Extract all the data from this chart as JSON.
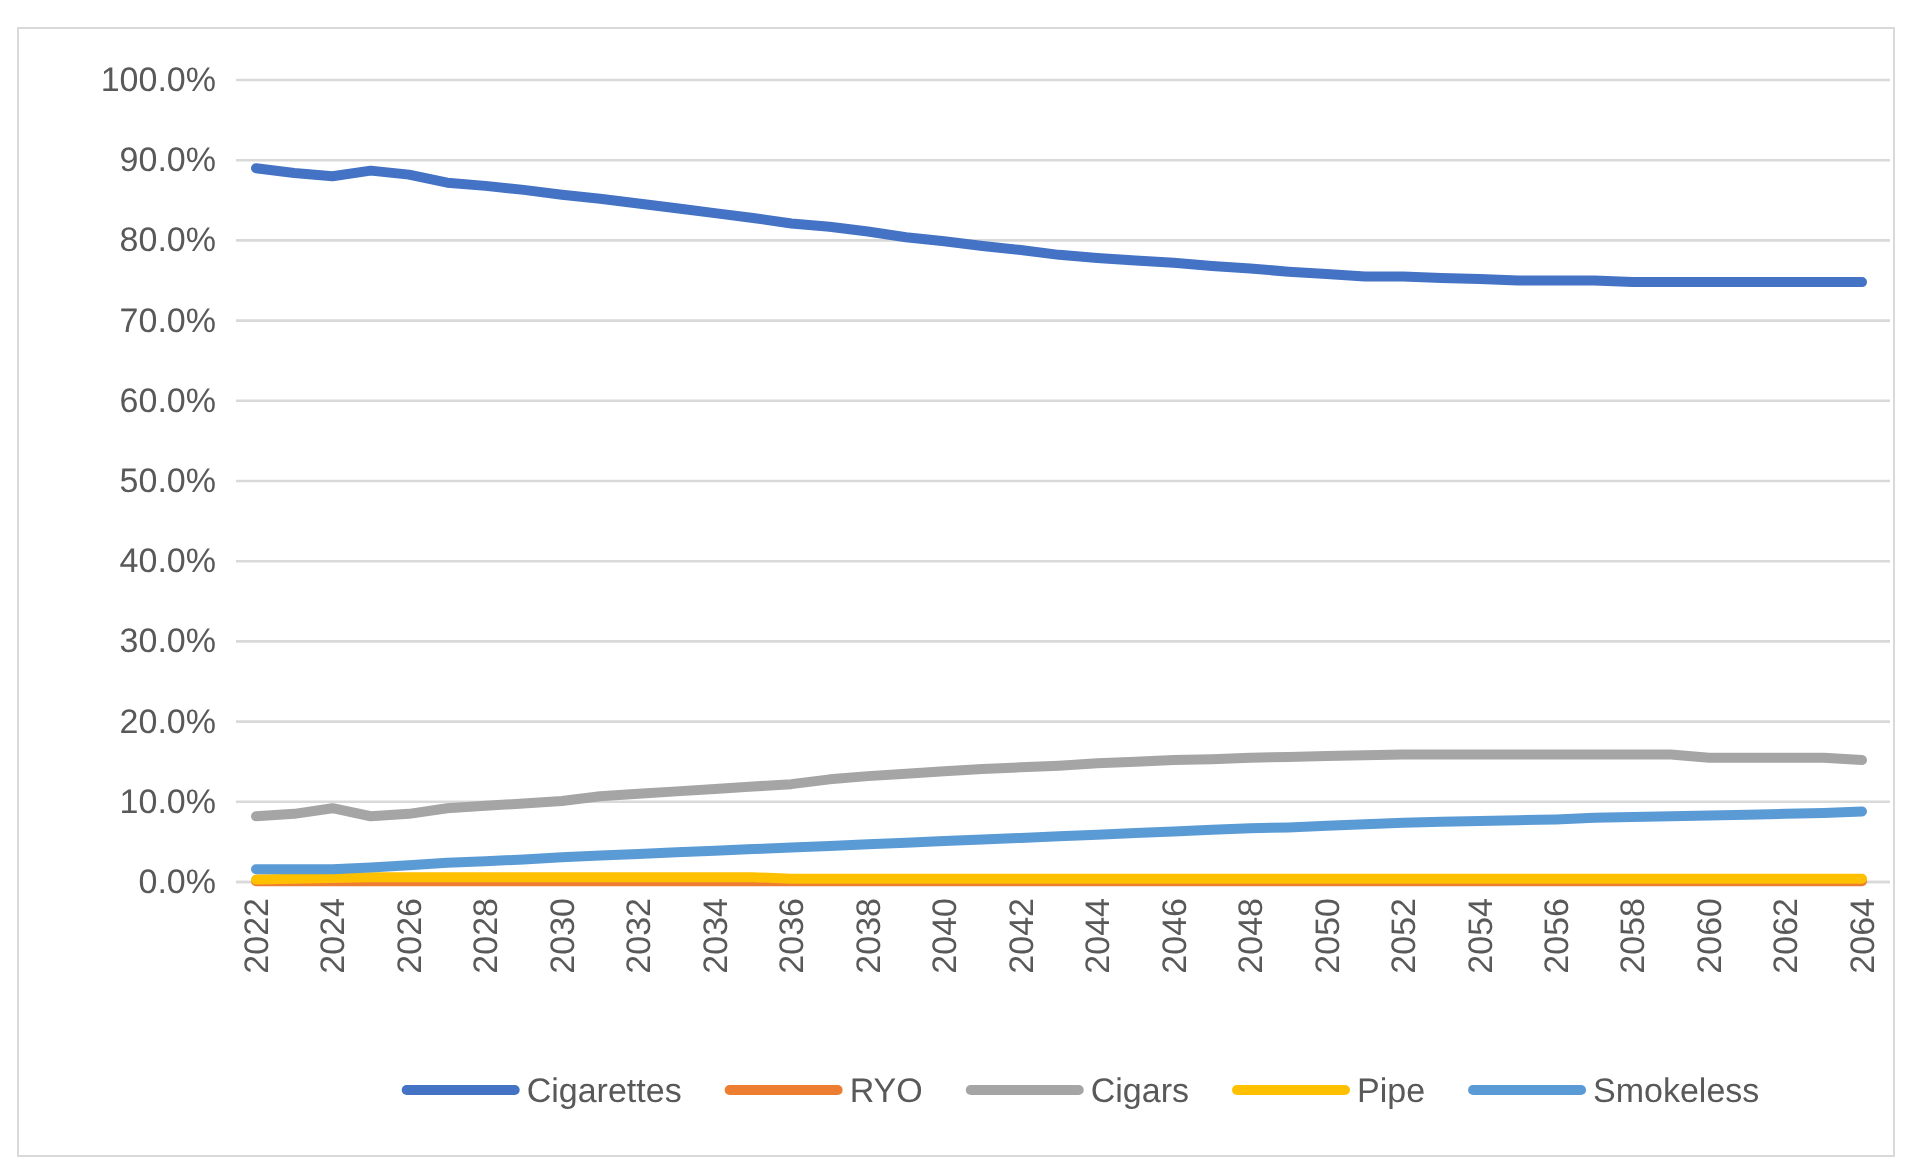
{
  "chart_data": {
    "type": "line",
    "categories": [
      "2022",
      null,
      "2024",
      null,
      "2026",
      null,
      "2028",
      null,
      "2030",
      null,
      "2032",
      null,
      "2034",
      null,
      "2036",
      null,
      "2038",
      null,
      "2040",
      null,
      "2042",
      null,
      "2044",
      null,
      "2046",
      null,
      "2048",
      null,
      "2050",
      null,
      "2052",
      null,
      "2054",
      null,
      "2056",
      null,
      "2058",
      null,
      "2060",
      null,
      "2062",
      null,
      "2064"
    ],
    "series": [
      {
        "name": "Cigarettes",
        "color": "#4472c4",
        "values": [
          89.0,
          88.4,
          88.0,
          88.7,
          88.2,
          87.2,
          86.8,
          86.3,
          85.7,
          85.2,
          84.6,
          84.0,
          83.4,
          82.8,
          82.1,
          81.7,
          81.1,
          80.4,
          79.9,
          79.3,
          78.8,
          78.2,
          77.8,
          77.5,
          77.2,
          76.8,
          76.5,
          76.1,
          75.8,
          75.5,
          75.5,
          75.3,
          75.2,
          75.0,
          75.0,
          75.0,
          74.8,
          74.8,
          74.8,
          74.8,
          74.8,
          74.8,
          74.8
        ]
      },
      {
        "name": "RYO",
        "color": "#ed7d31",
        "values": [
          0.1,
          0.1,
          0.1,
          0.1,
          0.1,
          0.1,
          0.1,
          0.1,
          0.1,
          0.1,
          0.1,
          0.1,
          0.1,
          0.1,
          0.1,
          0.1,
          0.1,
          0.1,
          0.1,
          0.1,
          0.1,
          0.1,
          0.1,
          0.1,
          0.1,
          0.1,
          0.1,
          0.1,
          0.1,
          0.1,
          0.1,
          0.1,
          0.1,
          0.1,
          0.1,
          0.1,
          0.1,
          0.1,
          0.1,
          0.1,
          0.1,
          0.1,
          0.1
        ]
      },
      {
        "name": "Cigars",
        "color": "#a5a5a5",
        "values": [
          8.2,
          8.5,
          9.2,
          8.2,
          8.5,
          9.2,
          9.5,
          9.8,
          10.1,
          10.7,
          11.0,
          11.3,
          11.6,
          11.9,
          12.2,
          12.8,
          13.2,
          13.5,
          13.8,
          14.1,
          14.3,
          14.5,
          14.8,
          15.0,
          15.2,
          15.3,
          15.5,
          15.6,
          15.7,
          15.8,
          15.9,
          15.9,
          15.9,
          15.9,
          15.9,
          15.9,
          15.9,
          15.9,
          15.5,
          15.5,
          15.5,
          15.5,
          15.2
        ]
      },
      {
        "name": "Pipe",
        "color": "#ffc000",
        "values": [
          0.3,
          0.4,
          0.5,
          0.6,
          0.6,
          0.6,
          0.6,
          0.6,
          0.6,
          0.6,
          0.6,
          0.6,
          0.6,
          0.6,
          0.4,
          0.4,
          0.4,
          0.4,
          0.4,
          0.4,
          0.4,
          0.4,
          0.4,
          0.4,
          0.4,
          0.4,
          0.4,
          0.4,
          0.4,
          0.4,
          0.4,
          0.4,
          0.4,
          0.4,
          0.4,
          0.4,
          0.4,
          0.4,
          0.4,
          0.4,
          0.4,
          0.4,
          0.4
        ]
      },
      {
        "name": "Smokeless",
        "color": "#5b9bd5",
        "values": [
          1.6,
          1.6,
          1.6,
          1.8,
          2.1,
          2.4,
          2.6,
          2.8,
          3.1,
          3.3,
          3.5,
          3.7,
          3.9,
          4.1,
          4.3,
          4.5,
          4.7,
          4.9,
          5.1,
          5.3,
          5.5,
          5.7,
          5.9,
          6.1,
          6.3,
          6.5,
          6.7,
          6.8,
          7.0,
          7.2,
          7.4,
          7.5,
          7.6,
          7.7,
          7.8,
          8.0,
          8.1,
          8.2,
          8.3,
          8.4,
          8.5,
          8.6,
          8.8
        ]
      }
    ],
    "ylim": [
      0,
      100
    ],
    "yticks": [
      {
        "value": 0,
        "label": "0.0%"
      },
      {
        "value": 10,
        "label": "10.0%"
      },
      {
        "value": 20,
        "label": "20.0%"
      },
      {
        "value": 30,
        "label": "30.0%"
      },
      {
        "value": 40,
        "label": "40.0%"
      },
      {
        "value": 50,
        "label": "50.0%"
      },
      {
        "value": 60,
        "label": "60.0%"
      },
      {
        "value": 70,
        "label": "70.0%"
      },
      {
        "value": 80,
        "label": "80.0%"
      },
      {
        "value": 90,
        "label": "90.0%"
      },
      {
        "value": 100,
        "label": "100.0%"
      }
    ],
    "grid": "y",
    "legend": "bottom",
    "marker": "none",
    "line_style": "solid"
  }
}
